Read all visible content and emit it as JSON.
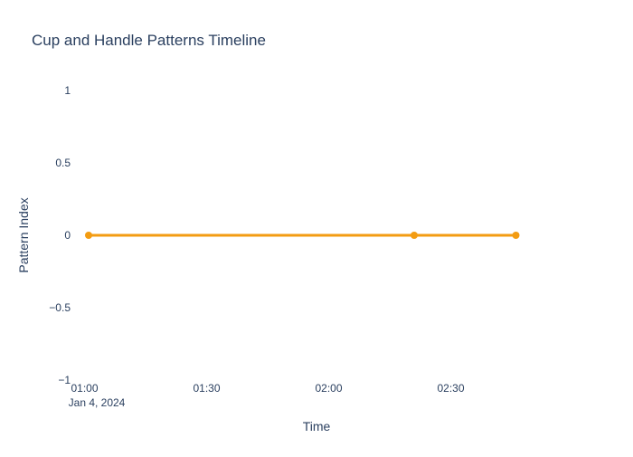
{
  "chart_data": {
    "type": "line",
    "title": "Cup and Handle Patterns Timeline",
    "xlabel": "Time",
    "ylabel": "Pattern Index",
    "x_tick_labels": [
      "01:00",
      "01:30",
      "02:00",
      "02:30"
    ],
    "x_date_label": "Jan 4, 2024",
    "y_tick_labels": [
      "1",
      "0.5",
      "0",
      "−0.5",
      "−1"
    ],
    "ylim": [
      -1,
      1
    ],
    "xlim": [
      "2024-01-04 00:57",
      "2024-01-04 02:57"
    ],
    "grid": false,
    "legend": false,
    "x": [
      "2024-01-04 01:01",
      "2024-01-04 02:21",
      "2024-01-04 02:46"
    ],
    "values": [
      0,
      0,
      0
    ],
    "line_color": "#f39c12",
    "text_color": "#2a3f5f"
  }
}
